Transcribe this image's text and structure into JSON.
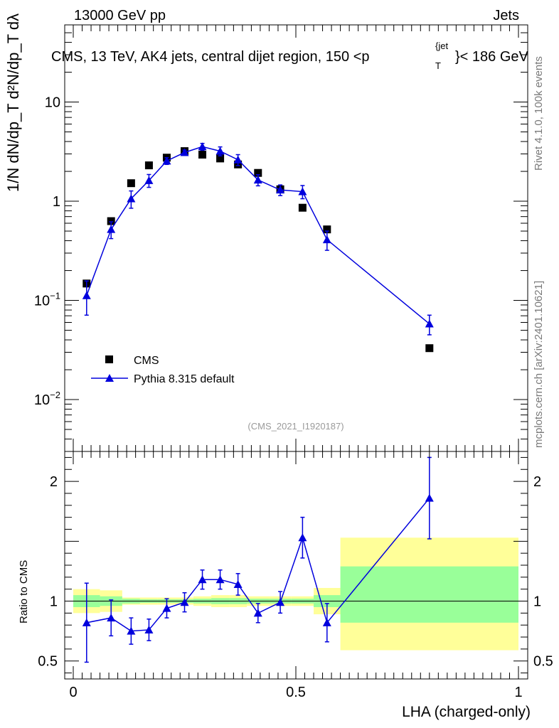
{
  "header": {
    "left": "13000 GeV pp",
    "right": "Jets"
  },
  "side_labels": {
    "rivet": "Rivet 4.1.0,  100k events",
    "mcplots": "mcplots.cern.ch [arXiv:2401.10621]"
  },
  "colors": {
    "data": "#000000",
    "mc": "#0000dd",
    "band_outer": "#ffff99",
    "band_inner": "#99ff99"
  },
  "chart_data": [
    {
      "type": "scatter",
      "title": "CMS, 13 TeV, AK4 jets, central dijet region, 150 <p_T^{jet}< 186 GeV",
      "title_parts": {
        "main": "CMS, 13 TeV, AK4 jets, central dijet region, 150 <p",
        "sub": "T",
        "sup": "{jet",
        "end": "}< 186 GeV"
      },
      "yscale": "log",
      "ylim": [
        0.003,
        60
      ],
      "xlim": [
        -0.02,
        1.0
      ],
      "ylabel": "1/N dN/dp_T  d²N/dp_T dλ",
      "yticks": [
        {
          "value": 0.01,
          "base": "10",
          "exp": "−2"
        },
        {
          "value": 0.1,
          "base": "10",
          "exp": "−1"
        },
        {
          "value": 1,
          "base": "1",
          "exp": ""
        },
        {
          "value": 10,
          "base": "10",
          "exp": ""
        }
      ],
      "watermark": "(CMS_2021_I1920187)",
      "legend_position": "lower-left",
      "series": [
        {
          "name": "CMS",
          "marker": "square",
          "x": [
            0.03,
            0.085,
            0.13,
            0.17,
            0.21,
            0.25,
            0.29,
            0.33,
            0.37,
            0.415,
            0.465,
            0.515,
            0.57,
            0.8
          ],
          "y": [
            0.148,
            0.63,
            1.52,
            2.3,
            2.75,
            3.2,
            2.95,
            2.7,
            2.35,
            1.93,
            1.32,
            0.86,
            0.52,
            0.033
          ]
        },
        {
          "name": "Pythia 8.315 default",
          "marker": "triangle",
          "x": [
            0.03,
            0.085,
            0.13,
            0.17,
            0.21,
            0.25,
            0.29,
            0.33,
            0.37,
            0.415,
            0.465,
            0.515,
            0.57,
            0.8
          ],
          "y": [
            0.112,
            0.52,
            1.06,
            1.62,
            2.55,
            3.1,
            3.55,
            3.2,
            2.62,
            1.64,
            1.3,
            1.25,
            0.41,
            0.058
          ],
          "yerr_low": [
            0.041,
            0.1,
            0.21,
            0.24,
            0.2,
            0.18,
            0.28,
            0.33,
            0.33,
            0.21,
            0.16,
            0.19,
            0.09,
            0.013
          ],
          "yerr_high": [
            0.045,
            0.1,
            0.21,
            0.24,
            0.2,
            0.18,
            0.28,
            0.33,
            0.33,
            0.21,
            0.16,
            0.19,
            0.09,
            0.013
          ]
        }
      ]
    },
    {
      "type": "scatter",
      "ylabel": "Ratio to CMS",
      "xlabel": "LHA (charged-only)",
      "yscale": "linear",
      "ylim": [
        0.35,
        2.25
      ],
      "xlim": [
        -0.02,
        1.0
      ],
      "yticks": [
        {
          "value": 0.5,
          "label": "0.5"
        },
        {
          "value": 1,
          "label": "1"
        },
        {
          "value": 2,
          "label": "2"
        }
      ],
      "xticks": [
        {
          "value": 0,
          "label": "0"
        },
        {
          "value": 0.5,
          "label": "0.5"
        },
        {
          "value": 1,
          "label": "1"
        }
      ],
      "reference_line": 1,
      "bands": {
        "edges": [
          0,
          0.06,
          0.11,
          0.15,
          0.19,
          0.23,
          0.27,
          0.31,
          0.35,
          0.39,
          0.44,
          0.49,
          0.54,
          0.6,
          1.0
        ],
        "outer_low": [
          0.9,
          0.91,
          0.97,
          0.97,
          0.97,
          0.97,
          0.96,
          0.95,
          0.95,
          0.96,
          0.96,
          0.96,
          0.89,
          0.59
        ],
        "outer_high": [
          1.1,
          1.09,
          1.03,
          1.03,
          1.03,
          1.03,
          1.04,
          1.05,
          1.05,
          1.04,
          1.04,
          1.04,
          1.11,
          1.53
        ],
        "inner_low": [
          0.95,
          0.96,
          0.98,
          0.985,
          0.985,
          0.985,
          0.98,
          0.975,
          0.975,
          0.98,
          0.98,
          0.98,
          0.95,
          0.82
        ],
        "inner_high": [
          1.05,
          1.04,
          1.02,
          1.015,
          1.015,
          1.015,
          1.02,
          1.025,
          1.025,
          1.02,
          1.02,
          1.02,
          1.05,
          1.29
        ]
      },
      "series": [
        {
          "name": "Pythia 8.315 default / CMS",
          "marker": "triangle",
          "x": [
            0.03,
            0.085,
            0.13,
            0.17,
            0.21,
            0.25,
            0.29,
            0.33,
            0.37,
            0.415,
            0.465,
            0.515,
            0.57,
            0.8
          ],
          "y": [
            0.82,
            0.86,
            0.75,
            0.76,
            0.94,
            0.99,
            1.18,
            1.18,
            1.14,
            0.9,
            0.99,
            1.53,
            0.82,
            1.86
          ],
          "yerr": [
            0.33,
            0.15,
            0.11,
            0.09,
            0.08,
            0.08,
            0.08,
            0.08,
            0.09,
            0.08,
            0.09,
            0.17,
            0.16,
            0.34
          ]
        }
      ]
    }
  ]
}
